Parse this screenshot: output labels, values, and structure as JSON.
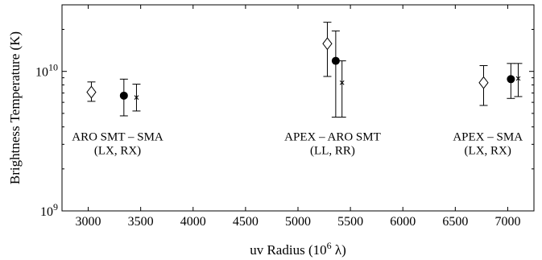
{
  "chart_data": {
    "type": "scatter",
    "title": "",
    "xlabel": "uv Radius (10⁶ λ)",
    "xlabel_parts": {
      "main": "uv Radius (10",
      "sup": "6",
      "end": " λ)"
    },
    "ylabel": "Brightness Temperature (K)",
    "x_scale": "linear",
    "y_scale": "log",
    "xlim": [
      2750,
      7250
    ],
    "ylim": [
      1000000000,
      30000000000
    ],
    "x_ticks": [
      3000,
      3500,
      4000,
      4500,
      5000,
      5500,
      6000,
      6500,
      7000
    ],
    "y_tick_labels": [
      {
        "value": 1000000000,
        "base": "10",
        "exp": "9"
      },
      {
        "value": 10000000000,
        "base": "10",
        "exp": "10"
      }
    ],
    "grid": false,
    "legend": "none",
    "series": [
      {
        "marker": "open-diamond",
        "points": [
          {
            "x": 3030,
            "y": 7100000000,
            "ylow": 6100000000,
            "yhigh": 8400000000
          },
          {
            "x": 5280,
            "y": 15800000000,
            "ylow": 9200000000,
            "yhigh": 22500000000
          },
          {
            "x": 6770,
            "y": 8300000000,
            "ylow": 5700000000,
            "yhigh": 11000000000
          }
        ]
      },
      {
        "marker": "filled-circle",
        "points": [
          {
            "x": 3340,
            "y": 6700000000,
            "ylow": 4800000000,
            "yhigh": 8800000000
          },
          {
            "x": 5360,
            "y": 11900000000,
            "ylow": 4700000000,
            "yhigh": 19500000000
          },
          {
            "x": 7030,
            "y": 8800000000,
            "ylow": 6400000000,
            "yhigh": 11400000000
          }
        ]
      },
      {
        "marker": "x",
        "points": [
          {
            "x": 3460,
            "y": 6500000000,
            "ylow": 5200000000,
            "yhigh": 8100000000
          },
          {
            "x": 5420,
            "y": 8300000000,
            "ylow": 4700000000,
            "yhigh": 11900000000
          },
          {
            "x": 7100,
            "y": 8900000000,
            "ylow": 6600000000,
            "yhigh": 11400000000
          }
        ]
      }
    ],
    "annotations": [
      {
        "lines": [
          "ARO SMT – SMA",
          "(LX, RX)"
        ],
        "x": 3280,
        "y": 3200000000
      },
      {
        "lines": [
          "APEX – ARO SMT",
          "(LL, RR)"
        ],
        "x": 5330,
        "y": 3200000000
      },
      {
        "lines": [
          "APEX – SMA",
          "(LX, RX)"
        ],
        "x": 6810,
        "y": 3200000000
      }
    ]
  }
}
